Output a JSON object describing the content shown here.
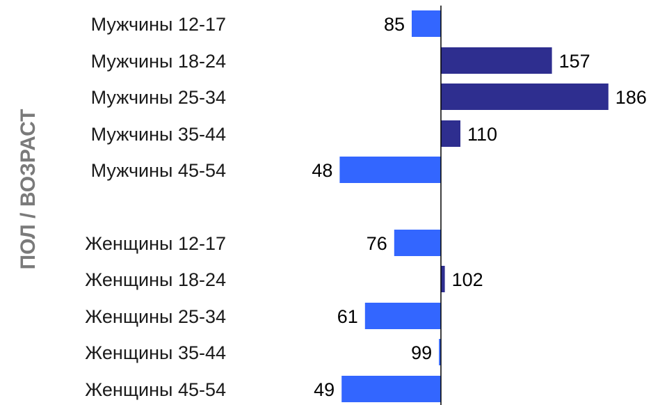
{
  "chart_data": {
    "type": "bar",
    "orientation": "horizontal",
    "baseline": 100,
    "ylabel": "ПОЛ / ВОЗРАСТ",
    "categories": [
      "Мужчины 12-17",
      "Мужчины 18-24",
      "Мужчины 25-34",
      "Мужчины 35-44",
      "Мужчины 45-54",
      "Женщины 12-17",
      "Женщины 18-24",
      "Женщины 25-34",
      "Женщины 35-44",
      "Женщины 45-54"
    ],
    "values": [
      85,
      157,
      186,
      110,
      48,
      76,
      102,
      61,
      99,
      49
    ],
    "value_labels": [
      "85",
      "157",
      "186",
      "110",
      "48",
      "76",
      "102",
      "61",
      "99",
      "49"
    ],
    "groups": [
      "Мужчины",
      "Женщины"
    ],
    "colors": {
      "above": "#2e2e8f",
      "below": "#3366ff",
      "axis": "#000000"
    }
  }
}
